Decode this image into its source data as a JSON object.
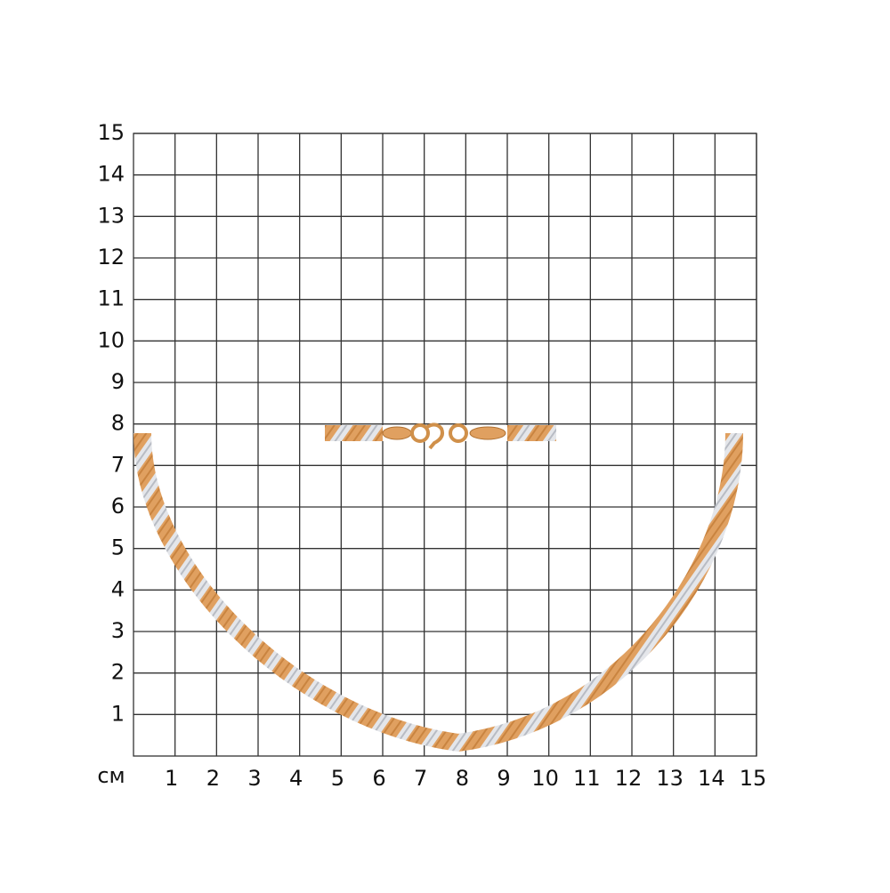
{
  "grid": {
    "unit": "см",
    "x_labels": [
      "1",
      "2",
      "3",
      "4",
      "5",
      "6",
      "7",
      "8",
      "9",
      "10",
      "11",
      "12",
      "13",
      "14",
      "15"
    ],
    "y_labels": [
      "1",
      "2",
      "3",
      "4",
      "5",
      "6",
      "7",
      "8",
      "9",
      "10",
      "11",
      "12",
      "13",
      "14",
      "15"
    ]
  }
}
